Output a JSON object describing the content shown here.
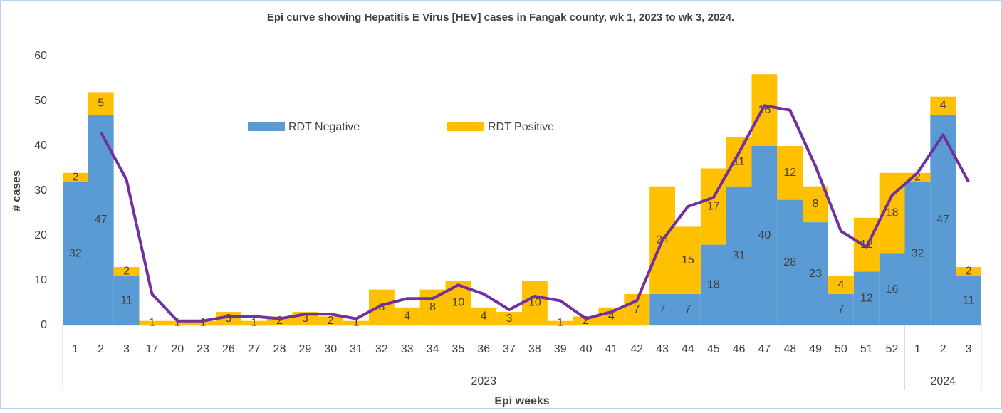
{
  "chart_data": {
    "type": "stacked_bar_line",
    "title": "Epi curve showing Hepatitis E Virus [HEV] cases in Fangak county, wk 1, 2023 to wk 3, 2024.",
    "y_label": "# cases",
    "x_label": "Epi weeks",
    "categories": [
      "1",
      "2",
      "3",
      "17",
      "20",
      "23",
      "26",
      "27",
      "28",
      "29",
      "30",
      "31",
      "32",
      "33",
      "34",
      "35",
      "36",
      "37",
      "38",
      "39",
      "40",
      "41",
      "42",
      "43",
      "44",
      "45",
      "46",
      "47",
      "48",
      "49",
      "50",
      "51",
      "52",
      "1",
      "2",
      "3"
    ],
    "groups": [
      {
        "label": "2023",
        "size": 33
      },
      {
        "label": "2024",
        "size": 3
      }
    ],
    "series": [
      {
        "name": "RDT Negative",
        "color": "#5b9bd5",
        "values": [
          32,
          47,
          11,
          0,
          0,
          0,
          0,
          0,
          0,
          0,
          0,
          0,
          0,
          0,
          0,
          0,
          0,
          0,
          0,
          0,
          0,
          0,
          0,
          7,
          7,
          18,
          31,
          40,
          28,
          23,
          7,
          12,
          16,
          32,
          47,
          11
        ]
      },
      {
        "name": "RDT Positive",
        "color": "#ffc000",
        "values": [
          2,
          5,
          2,
          1,
          1,
          1,
          3,
          1,
          2,
          3,
          2,
          1,
          8,
          4,
          8,
          10,
          4,
          3,
          10,
          1,
          2,
          4,
          7,
          24,
          15,
          17,
          11,
          16,
          12,
          8,
          4,
          12,
          18,
          2,
          4,
          2
        ]
      }
    ],
    "trend_line": {
      "color": "#7030a0",
      "values": [
        null,
        43,
        32.5,
        7,
        1,
        1,
        2,
        2,
        1.5,
        2.5,
        2.5,
        1.5,
        4.5,
        6,
        6,
        9,
        7,
        3.5,
        6.5,
        5.5,
        1.5,
        3,
        5.5,
        19,
        26.5,
        28.5,
        38.5,
        49,
        48,
        35.5,
        21,
        17.5,
        29,
        34,
        42.5,
        32
      ]
    },
    "ylim": [
      0,
      60
    ],
    "yticks": [
      0,
      10,
      20,
      30,
      40,
      50,
      60
    ],
    "grid": false,
    "legend": "top"
  }
}
